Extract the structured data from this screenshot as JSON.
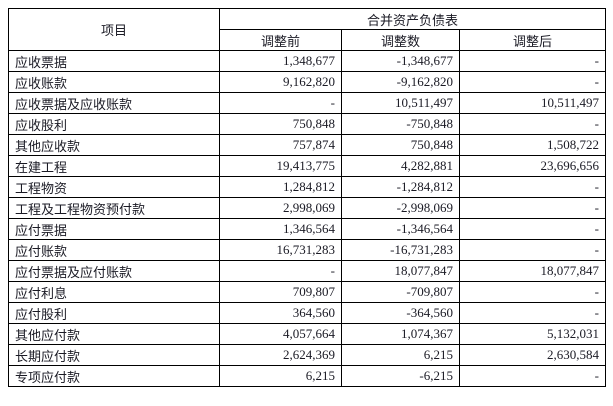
{
  "table": {
    "item_column_header": "项目",
    "group_header": "合并资产负债表",
    "sub_headers": [
      "调整前",
      "调整数",
      "调整后"
    ],
    "rows": [
      {
        "item": "应收票据",
        "before": "1,348,677",
        "adjustment": "-1,348,677",
        "after": "-"
      },
      {
        "item": "应收账款",
        "before": "9,162,820",
        "adjustment": "-9,162,820",
        "after": "-"
      },
      {
        "item": "应收票据及应收账款",
        "before": "-",
        "adjustment": "10,511,497",
        "after": "10,511,497"
      },
      {
        "item": "应收股利",
        "before": "750,848",
        "adjustment": "-750,848",
        "after": "-"
      },
      {
        "item": "其他应收款",
        "before": "757,874",
        "adjustment": "750,848",
        "after": "1,508,722"
      },
      {
        "item": "在建工程",
        "before": "19,413,775",
        "adjustment": "4,282,881",
        "after": "23,696,656"
      },
      {
        "item": "工程物资",
        "before": "1,284,812",
        "adjustment": "-1,284,812",
        "after": "-"
      },
      {
        "item": "工程及工程物资预付款",
        "before": "2,998,069",
        "adjustment": "-2,998,069",
        "after": "-"
      },
      {
        "item": "应付票据",
        "before": "1,346,564",
        "adjustment": "-1,346,564",
        "after": "-"
      },
      {
        "item": "应付账款",
        "before": "16,731,283",
        "adjustment": "-16,731,283",
        "after": "-"
      },
      {
        "item": "应付票据及应付账款",
        "before": "-",
        "adjustment": "18,077,847",
        "after": "18,077,847"
      },
      {
        "item": "应付利息",
        "before": "709,807",
        "adjustment": "-709,807",
        "after": "-"
      },
      {
        "item": "应付股利",
        "before": "364,560",
        "adjustment": "-364,560",
        "after": "-"
      },
      {
        "item": "其他应付款",
        "before": "4,057,664",
        "adjustment": "1,074,367",
        "after": "5,132,031"
      },
      {
        "item": "长期应付款",
        "before": "2,624,369",
        "adjustment": "6,215",
        "after": "2,630,584"
      },
      {
        "item": "专项应付款",
        "before": "6,215",
        "adjustment": "-6,215",
        "after": "-"
      }
    ]
  },
  "colors": {
    "border": "#000000",
    "text": "#1a1a24",
    "background": "#ffffff"
  }
}
